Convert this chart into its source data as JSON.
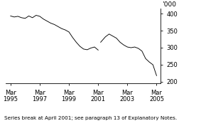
{
  "title": "",
  "ylabel_right": "’000",
  "footnote": "Series break at April 2001; see paragraph 13 of Explanatory Notes.",
  "ylim": [
    195,
    415
  ],
  "yticks": [
    200,
    250,
    300,
    350,
    400
  ],
  "line_color": "#000000",
  "background_color": "#ffffff",
  "x_start_year": 1994.9,
  "x_end_year": 2005.5,
  "xtick_labels": [
    "Mar\n1995",
    "Mar\n1997",
    "Mar\n1999",
    "Mar\n2001",
    "Mar\n2003",
    "Mar\n2005"
  ],
  "xtick_positions": [
    1995.21,
    1997.21,
    1999.21,
    2001.21,
    2003.21,
    2005.21
  ],
  "data_x": [
    1995.21,
    1995.46,
    1995.71,
    1995.96,
    1996.21,
    1996.46,
    1996.71,
    1996.96,
    1997.21,
    1997.46,
    1997.71,
    1997.96,
    1998.21,
    1998.46,
    1998.71,
    1998.96,
    1999.21,
    1999.46,
    1999.71,
    1999.96,
    2000.21,
    2000.46,
    2000.71,
    2000.96,
    2001.21,
    2001.38,
    2001.71,
    2001.96,
    2002.21,
    2002.46,
    2002.71,
    2002.96,
    2003.21,
    2003.46,
    2003.71,
    2003.96,
    2004.21,
    2004.46,
    2004.71,
    2004.96,
    2005.21
  ],
  "data_y": [
    393,
    390,
    392,
    388,
    386,
    393,
    388,
    395,
    392,
    384,
    378,
    372,
    368,
    362,
    356,
    352,
    346,
    330,
    316,
    304,
    296,
    294,
    299,
    302,
    293,
    316,
    332,
    340,
    334,
    328,
    316,
    308,
    302,
    300,
    302,
    298,
    290,
    268,
    258,
    250,
    218
  ],
  "break_x": 2001.21,
  "footnote_fontsize": 5.2,
  "tick_fontsize": 6.0,
  "ylabel_fontsize": 6.5
}
